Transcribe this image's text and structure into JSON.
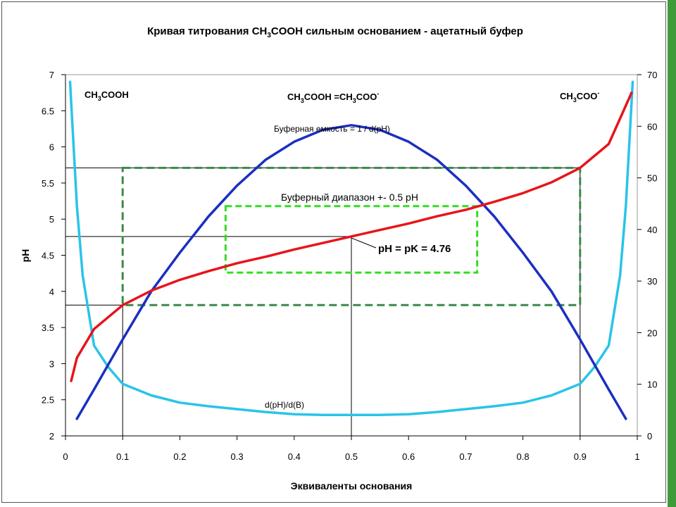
{
  "chart_data": {
    "type": "line",
    "title_parts": [
      "Кривая титрования CH",
      "3",
      "COOH сильным основанием - ацетатный буфер"
    ],
    "xlabel": "Эквиваленты основания",
    "ylabel": "pH",
    "xlim": [
      0,
      1
    ],
    "ylim_left": [
      2,
      7
    ],
    "ylim_right": [
      0,
      70
    ],
    "x_ticks": [
      "0",
      "0.1",
      "0.2",
      "0.3",
      "0.4",
      "0.5",
      "0.6",
      "0.7",
      "0.8",
      "0.9",
      "1"
    ],
    "y_left_ticks": [
      "2",
      "2.5",
      "3",
      "3.5",
      "4",
      "4.5",
      "5",
      "5.5",
      "6",
      "6.5",
      "7"
    ],
    "y_right_ticks": [
      "0",
      "10",
      "20",
      "30",
      "40",
      "50",
      "60",
      "70"
    ],
    "grid": false,
    "series": [
      {
        "name": "pH",
        "axis": "left",
        "color": "#e8141b",
        "x": [
          0.01,
          0.02,
          0.05,
          0.1,
          0.15,
          0.2,
          0.25,
          0.3,
          0.35,
          0.4,
          0.45,
          0.5,
          0.55,
          0.6,
          0.65,
          0.7,
          0.75,
          0.8,
          0.85,
          0.9,
          0.95,
          0.99
        ],
        "y": [
          2.76,
          3.08,
          3.48,
          3.81,
          4.01,
          4.16,
          4.28,
          4.39,
          4.48,
          4.58,
          4.67,
          4.76,
          4.85,
          4.94,
          5.04,
          5.13,
          5.24,
          5.36,
          5.51,
          5.71,
          6.04,
          6.75
        ]
      },
      {
        "name": "Буферная емкость = 1 / d(pH)",
        "axis": "right",
        "color": "#1c2fc0",
        "x": [
          0.02,
          0.05,
          0.1,
          0.15,
          0.2,
          0.25,
          0.3,
          0.35,
          0.4,
          0.45,
          0.5,
          0.55,
          0.6,
          0.65,
          0.7,
          0.75,
          0.8,
          0.85,
          0.9,
          0.95,
          0.98
        ],
        "y": [
          3.3,
          9.0,
          18.7,
          28.0,
          35.5,
          42.5,
          48.5,
          53.5,
          57.0,
          59.3,
          60.2,
          59.3,
          57.0,
          53.5,
          48.5,
          42.5,
          35.5,
          28.0,
          18.7,
          9.0,
          3.3
        ]
      },
      {
        "name": "d(pH)/d(B)",
        "axis": "left",
        "color": "#29c4e8",
        "x": [
          0.008,
          0.02,
          0.03,
          0.05,
          0.075,
          0.1,
          0.15,
          0.2,
          0.25,
          0.3,
          0.35,
          0.4,
          0.45,
          0.5,
          0.55,
          0.6,
          0.65,
          0.7,
          0.75,
          0.8,
          0.85,
          0.9,
          0.925,
          0.95,
          0.97,
          0.98,
          0.992
        ],
        "y": [
          6.9,
          5.18,
          4.22,
          3.25,
          2.95,
          2.72,
          2.56,
          2.46,
          2.41,
          2.37,
          2.33,
          2.3,
          2.29,
          2.29,
          2.29,
          2.3,
          2.33,
          2.37,
          2.41,
          2.46,
          2.56,
          2.72,
          2.95,
          3.25,
          4.22,
          5.18,
          6.9
        ]
      }
    ],
    "buffer_capacity_label": "Буферная емкость = 1 / d(pH)",
    "derivative_label": "d(pH)/d(B)",
    "buffer_range_label": "Буферный диапазон +- 0.5 pH",
    "pk_label": "pH = pK = 4.76",
    "region_labels": [
      {
        "parts": [
          "CH",
          "3",
          "COOH"
        ],
        "sup": ""
      },
      {
        "parts": [
          "CH",
          "3",
          "COOH =CH",
          "3",
          "COO"
        ],
        "sup": "-"
      },
      {
        "parts": [
          "CH",
          "3",
          "COO"
        ],
        "sup": "-"
      }
    ],
    "buffer_region_outer": {
      "x": [
        0.1,
        0.9
      ],
      "y": [
        3.81,
        5.71
      ]
    },
    "buffer_region_inner": {
      "x": [
        0.28,
        0.72
      ],
      "y": [
        4.26,
        5.18
      ]
    },
    "reference_points": [
      {
        "x": 0.1,
        "y": 3.81
      },
      {
        "x": 0.5,
        "y": 4.76
      },
      {
        "x": 0.9,
        "y": 5.71
      }
    ]
  }
}
